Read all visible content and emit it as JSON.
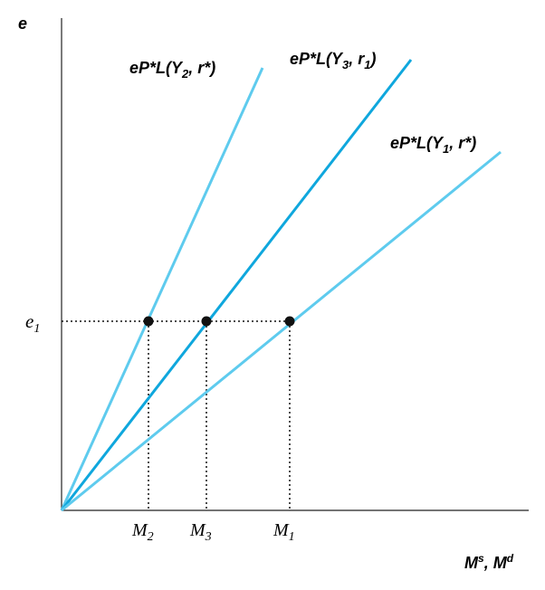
{
  "axes": {
    "y_label": "e",
    "x_label_base1": "M",
    "x_label_sup1": "s",
    "x_label_sep": ", ",
    "x_label_base2": "M",
    "x_label_sup2": "d"
  },
  "level": {
    "base": "e",
    "sub": "1"
  },
  "ticks": [
    {
      "base": "M",
      "sub": "2"
    },
    {
      "base": "M",
      "sub": "3"
    },
    {
      "base": "M",
      "sub": "1"
    }
  ],
  "curves": [
    {
      "prefix": "eP*L(Y",
      "sub": "2",
      "suffix": ", r*)",
      "color": "#5ecbee"
    },
    {
      "prefix": "eP*L(Y",
      "sub": "3",
      "suffix": ", r",
      "sub2": "1",
      "end": ")",
      "color": "#0fa7dd"
    },
    {
      "prefix": "eP*L(Y",
      "sub": "1",
      "suffix": ", r*)",
      "color": "#5ecbee"
    }
  ],
  "colors": {
    "light_curve": "#5ecbee",
    "dark_curve": "#0fa7dd",
    "axis": "#222222",
    "point": "#111111"
  }
}
